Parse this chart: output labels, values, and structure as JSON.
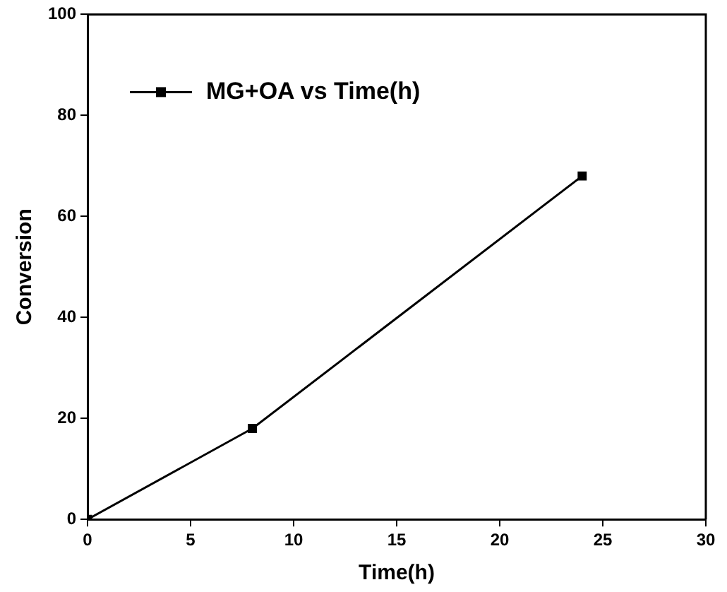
{
  "chart_data": {
    "type": "line",
    "xlabel": "Time(h)",
    "ylabel": "Conversion",
    "x": [
      0,
      8,
      24
    ],
    "series": [
      {
        "name": "MG+OA vs Time(h)",
        "color": "#000000",
        "values": [
          0,
          18,
          68
        ]
      }
    ],
    "xlim": [
      0,
      30
    ],
    "xticks": [
      0,
      5,
      10,
      15,
      20,
      25,
      30
    ],
    "ylim": [
      0,
      100
    ],
    "yticks": [
      0,
      20,
      40,
      60,
      80,
      100
    ],
    "grid": false,
    "legend": "top left",
    "marker": "square",
    "line_style": "solid"
  }
}
